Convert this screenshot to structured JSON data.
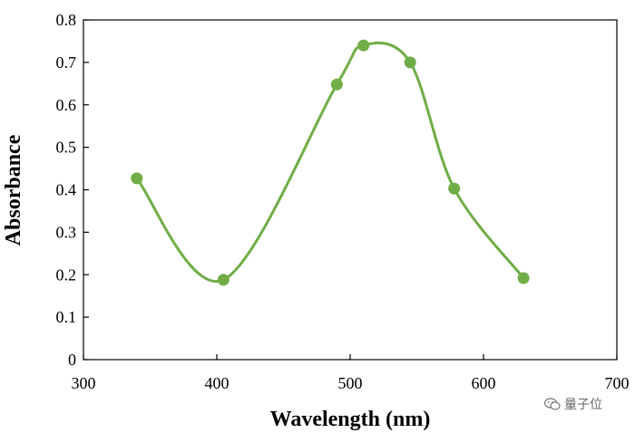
{
  "chart_data": {
    "type": "line",
    "title": "",
    "xlabel": "Wavelength (nm)",
    "ylabel": "Absorbance",
    "xlim": [
      300,
      700
    ],
    "ylim": [
      0,
      0.8
    ],
    "xticks": [
      300,
      400,
      500,
      600,
      700
    ],
    "yticks": [
      0,
      0.1,
      0.2,
      0.3,
      0.4,
      0.5,
      0.6,
      0.7,
      0.8
    ],
    "ytick_labels": [
      "0",
      "0.1",
      "0.2",
      "0.3",
      "0.4",
      "0.5",
      "0.6",
      "0.7",
      "0.8"
    ],
    "grid": false,
    "legend": "none",
    "series": [
      {
        "name": "Absorbance",
        "color": "#70ad47",
        "smooth": true,
        "markers": true,
        "x": [
          340,
          405,
          490,
          510,
          545,
          578,
          630
        ],
        "y": [
          0.427,
          0.188,
          0.648,
          0.74,
          0.7,
          0.403,
          0.192
        ]
      }
    ]
  },
  "watermark": {
    "text": "量子位",
    "icon": "wechat-icon"
  }
}
